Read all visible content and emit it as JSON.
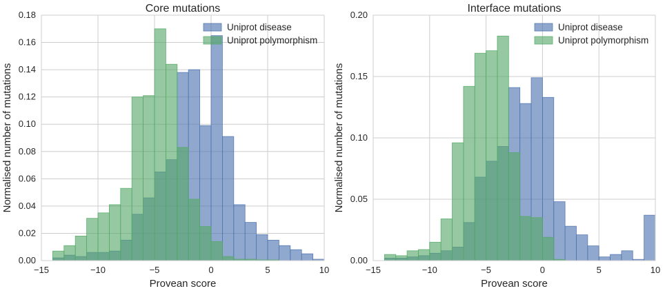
{
  "chart_data": [
    {
      "type": "bar",
      "title": "Core mutations",
      "xlabel": "Provean score",
      "ylabel": "Normalised number of mutations",
      "xlim": [
        -15,
        10
      ],
      "ylim": [
        0,
        0.18
      ],
      "xticks": [
        -15,
        -10,
        -5,
        0,
        5,
        10
      ],
      "yticks": [
        0.0,
        0.02,
        0.04,
        0.06,
        0.08,
        0.1,
        0.12,
        0.14,
        0.16,
        0.18
      ],
      "ytick_format": 2,
      "grid": true,
      "legend": "top-right",
      "bin_edges": [
        -14,
        -13,
        -12,
        -11,
        -10,
        -9,
        -8,
        -7,
        -6,
        -5,
        -4,
        -3,
        -2,
        -1,
        0,
        1,
        2,
        3,
        4,
        5,
        6,
        7,
        8,
        9,
        10
      ],
      "series": [
        {
          "name": "Uniprot disease",
          "color": "#4c72b0",
          "values": [
            0.002,
            0.004,
            0.003,
            0.006,
            0.006,
            0.007,
            0.015,
            0.034,
            0.046,
            0.065,
            0.074,
            0.138,
            0.14,
            0.099,
            0.165,
            0.091,
            0.041,
            0.028,
            0.019,
            0.015,
            0.011,
            0.008,
            0.005,
            0.001
          ]
        },
        {
          "name": "Uniprot polymorphism",
          "color": "#55a868",
          "values": [
            0.007,
            0.011,
            0.018,
            0.031,
            0.035,
            0.041,
            0.053,
            0.12,
            0.121,
            0.17,
            0.144,
            0.083,
            0.045,
            0.025,
            0.014,
            0.003,
            0.001,
            0.001,
            0.0005,
            0.0005,
            0.0,
            0.0,
            0.0,
            0.0
          ]
        }
      ]
    },
    {
      "type": "bar",
      "title": "Interface mutations",
      "xlabel": "Provean score",
      "ylabel": "Normalised number of mutations",
      "xlim": [
        -15,
        10
      ],
      "ylim": [
        0,
        0.2
      ],
      "xticks": [
        -15,
        -10,
        -5,
        0,
        5,
        10
      ],
      "yticks": [
        0.0,
        0.05,
        0.1,
        0.15,
        0.2
      ],
      "ytick_format": 2,
      "grid": true,
      "legend": "top-right",
      "bin_edges": [
        -14,
        -13,
        -12,
        -11,
        -10,
        -9,
        -8,
        -7,
        -6,
        -5,
        -4,
        -3,
        -2,
        -1,
        0,
        1,
        2,
        3,
        4,
        5,
        6,
        7,
        8,
        9,
        10
      ],
      "series": [
        {
          "name": "Uniprot disease",
          "color": "#4c72b0",
          "values": [
            0.002,
            0.002,
            0.003,
            0.004,
            0.006,
            0.008,
            0.011,
            0.031,
            0.068,
            0.081,
            0.093,
            0.141,
            0.128,
            0.149,
            0.133,
            0.048,
            0.028,
            0.021,
            0.012,
            0.003,
            0.005,
            0.008,
            0.001,
            0.037
          ]
        },
        {
          "name": "Uniprot polymorphism",
          "color": "#55a868",
          "values": [
            0.005,
            0.004,
            0.008,
            0.009,
            0.015,
            0.034,
            0.096,
            0.142,
            0.169,
            0.171,
            0.183,
            0.088,
            0.036,
            0.035,
            0.019,
            0.001,
            0.0,
            0.0,
            0.0,
            0.0,
            0.0,
            0.0,
            0.0,
            0.0
          ]
        }
      ]
    }
  ]
}
